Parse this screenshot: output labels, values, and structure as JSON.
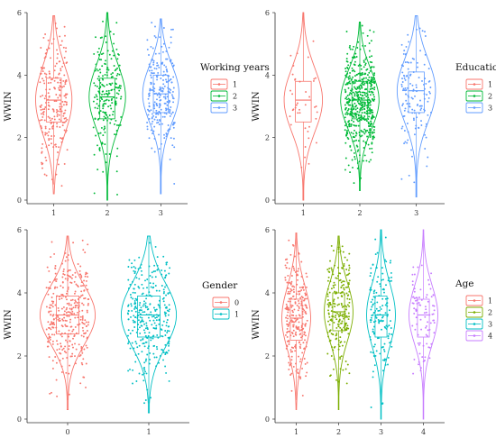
{
  "chart_data": [
    {
      "type": "violin",
      "ylabel": "WWIN",
      "ylim": [
        0,
        6
      ],
      "yticks": [
        0,
        2,
        4,
        6
      ],
      "categories": [
        "1",
        "2",
        "3"
      ],
      "legend_title": "Working years",
      "legend_position": "right",
      "series": [
        {
          "name": "1",
          "color": "#F8766D",
          "min": 0.2,
          "max": 5.9,
          "q1": 2.5,
          "median": 3.2,
          "q3": 3.9,
          "n": 230
        },
        {
          "name": "2",
          "color": "#00BA38",
          "min": 0.0,
          "max": 6.0,
          "q1": 2.6,
          "median": 3.3,
          "q3": 3.9,
          "n": 210
        },
        {
          "name": "3",
          "color": "#619CFF",
          "min": 0.2,
          "max": 5.8,
          "q1": 2.8,
          "median": 3.4,
          "q3": 4.0,
          "n": 250
        }
      ]
    },
    {
      "type": "violin",
      "ylabel": "WWIN",
      "ylim": [
        0,
        6
      ],
      "yticks": [
        0,
        2,
        4,
        6
      ],
      "categories": [
        "1",
        "2",
        "3"
      ],
      "legend_title": "Education",
      "legend_position": "right",
      "series": [
        {
          "name": "1",
          "color": "#F8766D",
          "min": 0.0,
          "max": 6.0,
          "q1": 2.5,
          "median": 3.2,
          "q3": 3.8,
          "n": 40
        },
        {
          "name": "2",
          "color": "#00BA38",
          "min": 0.3,
          "max": 5.7,
          "q1": 2.6,
          "median": 3.2,
          "q3": 3.8,
          "n": 520
        },
        {
          "name": "3",
          "color": "#619CFF",
          "min": 0.1,
          "max": 5.9,
          "q1": 2.8,
          "median": 3.5,
          "q3": 4.1,
          "n": 140
        }
      ]
    },
    {
      "type": "violin",
      "ylabel": "WWIN",
      "ylim": [
        0,
        6
      ],
      "yticks": [
        0,
        2,
        4,
        6
      ],
      "categories": [
        "0",
        "1"
      ],
      "legend_title": "Gender",
      "legend_position": "right",
      "series": [
        {
          "name": "0",
          "color": "#F8766D",
          "min": 0.3,
          "max": 5.8,
          "q1": 2.7,
          "median": 3.3,
          "q3": 3.9,
          "n": 340
        },
        {
          "name": "1",
          "color": "#00BFC4",
          "min": 0.2,
          "max": 5.8,
          "q1": 2.6,
          "median": 3.3,
          "q3": 3.9,
          "n": 330
        }
      ]
    },
    {
      "type": "violin",
      "ylabel": "WWIN",
      "ylim": [
        0,
        6
      ],
      "yticks": [
        0,
        2,
        4,
        6
      ],
      "categories": [
        "1",
        "2",
        "3",
        "4"
      ],
      "legend_title": "Age",
      "legend_position": "right",
      "series": [
        {
          "name": "1",
          "color": "#F8766D",
          "min": 0.3,
          "max": 5.9,
          "q1": 2.5,
          "median": 3.2,
          "q3": 3.8,
          "n": 260
        },
        {
          "name": "2",
          "color": "#7CAE00",
          "min": 0.3,
          "max": 5.8,
          "q1": 2.8,
          "median": 3.4,
          "q3": 4.0,
          "n": 230
        },
        {
          "name": "3",
          "color": "#00BFC4",
          "min": 0.0,
          "max": 6.0,
          "q1": 2.6,
          "median": 3.3,
          "q3": 3.9,
          "n": 150
        },
        {
          "name": "4",
          "color": "#C77CFF",
          "min": 0.0,
          "max": 6.0,
          "q1": 2.6,
          "median": 3.3,
          "q3": 3.8,
          "n": 90
        }
      ]
    }
  ]
}
